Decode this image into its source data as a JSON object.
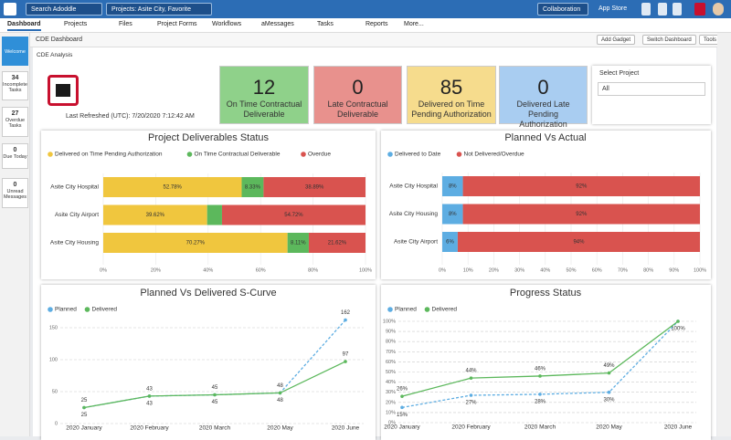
{
  "header": {
    "search": "Search Adoddle",
    "projects": "Projects: Asite City, Favorite Projects",
    "collaboration": "Collaboration",
    "app_store": "App Store"
  },
  "nav": [
    "Dashboard",
    "Projects",
    "Files",
    "Project Forms",
    "Workflows",
    "aMessages",
    "Tasks",
    "Reports",
    "More..."
  ],
  "toolbar": {
    "title": "CDE Dashboard",
    "buttons": [
      "Add Gadget",
      "Switch Dashboard",
      "Tools"
    ]
  },
  "sidebar": [
    {
      "count": null,
      "label": "Welcome"
    },
    {
      "count": "34",
      "label": "Incomplete Tasks"
    },
    {
      "count": "27",
      "label": "Overdue Tasks"
    },
    {
      "count": "0",
      "label": "Due Today"
    },
    {
      "count": "0",
      "label": "Unread Messages"
    }
  ],
  "dashboard": {
    "section": "CDE Analysis",
    "refreshed": "Last Refreshed (UTC): 7/20/2020 7:12:42 AM",
    "kpis": [
      {
        "value": "12",
        "label": "On Time Contractual Deliverable",
        "color": "#8fd18a"
      },
      {
        "value": "0",
        "label": "Late Contractual Deliverable",
        "color": "#e8918d"
      },
      {
        "value": "85",
        "label": "Delivered on Time Pending Authorization",
        "color": "#f6dc8d"
      },
      {
        "value": "0",
        "label": "Delivered Late Pending Authorization",
        "color": "#a9cdf1"
      }
    ],
    "select_label": "Select Project",
    "select_value": "All"
  },
  "chart_data": [
    {
      "type": "hbar_stacked",
      "title": "Project Deliverables Status",
      "categories": [
        "Asite City Hospital",
        "Asite City Airport",
        "Asite City Housing"
      ],
      "series": [
        {
          "name": "Delivered on Time Pending Authorization",
          "color": "#f0c63e",
          "values": [
            52.78,
            39.62,
            70.27
          ],
          "value_labels": [
            "52.78%",
            "39.62%",
            "70.27%"
          ]
        },
        {
          "name": "On Time Contractual Deliverable",
          "color": "#5cb85c",
          "values": [
            8.33,
            5.66,
            8.11
          ],
          "value_labels": [
            "8.33%",
            null,
            "8.11%"
          ]
        },
        {
          "name": "Overdue",
          "color": "#d9534f",
          "values": [
            38.89,
            54.72,
            21.62
          ],
          "value_labels": [
            "38.89%",
            "54.72%",
            "21.62%"
          ]
        }
      ],
      "xlim": [
        0,
        100
      ],
      "xticks": [
        {
          "value": 0,
          "label": "0%"
        },
        {
          "value": 20,
          "label": "20%"
        },
        {
          "value": 40,
          "label": "40%"
        },
        {
          "value": 60,
          "label": "60%"
        },
        {
          "value": 80,
          "label": "80%"
        },
        {
          "value": 100,
          "label": "100%"
        }
      ],
      "grid": true
    },
    {
      "type": "hbar_stacked",
      "title": "Planned Vs Actual",
      "categories": [
        "Asite City Hospital",
        "Asite City Housing",
        "Asite City Airport"
      ],
      "series": [
        {
          "name": "Delivered to Date",
          "color": "#5dade2",
          "values": [
            8,
            8,
            6
          ],
          "value_labels": [
            "8%",
            "8%",
            "6%"
          ]
        },
        {
          "name": "Not Delivered/Overdue",
          "color": "#d9534f",
          "values": [
            92,
            92,
            94
          ],
          "value_labels": [
            "92%",
            "92%",
            "94%"
          ]
        }
      ],
      "xlim": [
        0,
        100
      ],
      "xticks": [
        {
          "value": 0,
          "label": "0%"
        },
        {
          "value": 10,
          "label": "10%"
        },
        {
          "value": 20,
          "label": "20%"
        },
        {
          "value": 30,
          "label": "30%"
        },
        {
          "value": 40,
          "label": "40%"
        },
        {
          "value": 50,
          "label": "50%"
        },
        {
          "value": 60,
          "label": "60%"
        },
        {
          "value": 70,
          "label": "70%"
        },
        {
          "value": 80,
          "label": "80%"
        },
        {
          "value": 90,
          "label": "90%"
        },
        {
          "value": 100,
          "label": "100%"
        }
      ],
      "grid": true
    },
    {
      "type": "line",
      "title": "Planned Vs Delivered S-Curve",
      "categories": [
        "2020 January",
        "2020 February",
        "2020 March",
        "2020 May",
        "2020 June"
      ],
      "series": [
        {
          "name": "Planned",
          "color": "#5dade2",
          "dashed": true,
          "values": [
            25,
            43,
            45,
            48,
            162
          ]
        },
        {
          "name": "Delivered",
          "color": "#5cb85c",
          "dashed": false,
          "values": [
            25,
            43,
            45,
            48,
            97
          ]
        }
      ],
      "ylim": [
        0,
        160
      ],
      "yticks": [
        0,
        50,
        100,
        150
      ],
      "grid": true
    },
    {
      "type": "line",
      "title": "Progress Status",
      "categories": [
        "2020 January",
        "2020 February",
        "2020 March",
        "2020 May",
        "2020 June"
      ],
      "series": [
        {
          "name": "Planned",
          "color": "#5dade2",
          "dashed": true,
          "values": [
            15,
            27,
            28,
            30,
            100
          ],
          "value_labels": [
            "15%",
            "27%",
            "28%",
            "30%",
            "100%"
          ]
        },
        {
          "name": "Delivered",
          "color": "#5cb85c",
          "dashed": false,
          "values": [
            26,
            44,
            46,
            49,
            100
          ],
          "value_labels": [
            "26%",
            "44%",
            "46%",
            "49%",
            null
          ]
        }
      ],
      "ylim": [
        0,
        100
      ],
      "yticks": [
        {
          "value": 0,
          "label": "0%"
        },
        {
          "value": 10,
          "label": "10%"
        },
        {
          "value": 20,
          "label": "20%"
        },
        {
          "value": 30,
          "label": "30%"
        },
        {
          "value": 40,
          "label": "40%"
        },
        {
          "value": 50,
          "label": "50%"
        },
        {
          "value": 60,
          "label": "60%"
        },
        {
          "value": 70,
          "label": "70%"
        },
        {
          "value": 80,
          "label": "80%"
        },
        {
          "value": 90,
          "label": "90%"
        },
        {
          "value": 100,
          "label": "100%"
        }
      ],
      "grid": true
    }
  ]
}
